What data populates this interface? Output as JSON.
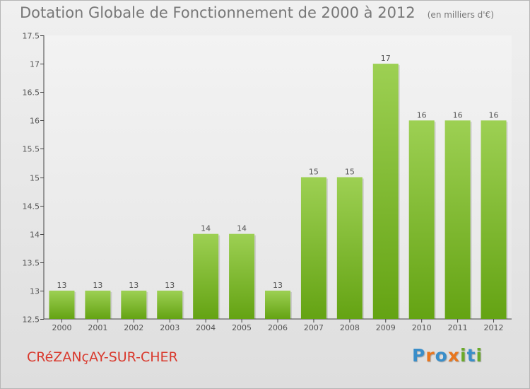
{
  "header": {
    "title": "Dotation Globale de Fonctionnement de 2000 à 2012",
    "subtitle": "(en milliers d'€)"
  },
  "footer": {
    "commune": "CRéZANçAY-SUR-CHER",
    "logo_text": "Proxiti"
  },
  "colors": {
    "bar_top": "#9dd053",
    "bar_bottom": "#64a313",
    "commune_text": "#d9392d",
    "title_text": "#777777",
    "logo_letters": [
      "#3a8ec9",
      "#e8761e",
      "#3a8ec9",
      "#e8761e",
      "#6aaa2a",
      "#3a8ec9",
      "#6aaa2a"
    ]
  },
  "chart_data": {
    "type": "bar",
    "title": "Dotation Globale de Fonctionnement de 2000 à 2012",
    "subtitle": "(en milliers d'€)",
    "categories": [
      "2000",
      "2001",
      "2002",
      "2003",
      "2004",
      "2005",
      "2006",
      "2007",
      "2008",
      "2009",
      "2010",
      "2011",
      "2012"
    ],
    "values": [
      13,
      13,
      13,
      13,
      14,
      14,
      13,
      15,
      15,
      17,
      16,
      16,
      16
    ],
    "ylim": [
      12.5,
      17.5
    ],
    "yticks": [
      "12.5",
      "13",
      "13.5",
      "14",
      "14.5",
      "15",
      "15.5",
      "16",
      "16.5",
      "17",
      "17.5"
    ],
    "grid": false,
    "legend": "none"
  }
}
